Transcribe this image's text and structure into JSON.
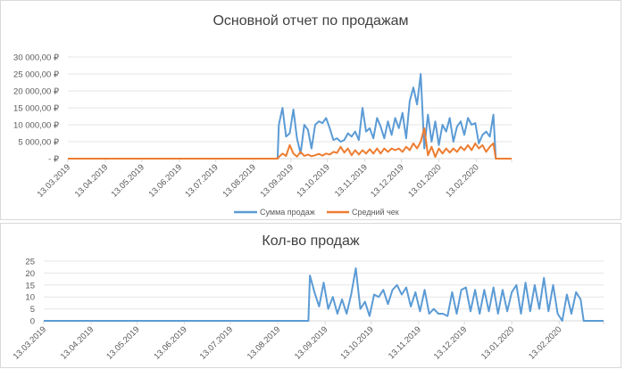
{
  "chart_data": [
    {
      "type": "line",
      "title": "Основной отчет по продажам",
      "xlabel": "",
      "ylabel": "",
      "ylim": [
        0,
        30000
      ],
      "yticks": [
        "-   ₽",
        "5 000,00 ₽",
        "10 000,00 ₽",
        "15 000,00 ₽",
        "20 000,00 ₽",
        "25 000,00 ₽",
        "30 000,00 ₽"
      ],
      "xlim": [
        "2019-03-13",
        "2020-03-13"
      ],
      "xticks": [
        "13.03.2019",
        "13.04.2019",
        "13.05.2019",
        "13.06.2019",
        "13.07.2019",
        "13.08.2019",
        "13.09.2019",
        "13.10.2019",
        "13.11.2019",
        "13.12.2019",
        "13.01.2020",
        "13.02.2020"
      ],
      "grid": true,
      "legend": "bottom",
      "x": [
        "2019-03-13",
        "2019-09-02",
        "2019-09-03",
        "2019-09-06",
        "2019-09-09",
        "2019-09-12",
        "2019-09-15",
        "2019-09-18",
        "2019-09-21",
        "2019-09-24",
        "2019-09-27",
        "2019-09-30",
        "2019-10-03",
        "2019-10-06",
        "2019-10-09",
        "2019-10-12",
        "2019-10-15",
        "2019-10-18",
        "2019-10-21",
        "2019-10-24",
        "2019-10-27",
        "2019-10-30",
        "2019-11-02",
        "2019-11-05",
        "2019-11-08",
        "2019-11-11",
        "2019-11-14",
        "2019-11-17",
        "2019-11-20",
        "2019-11-23",
        "2019-11-26",
        "2019-11-29",
        "2019-12-02",
        "2019-12-05",
        "2019-12-08",
        "2019-12-11",
        "2019-12-14",
        "2019-12-17",
        "2019-12-20",
        "2019-12-23",
        "2019-12-26",
        "2019-12-29",
        "2020-01-01",
        "2020-01-04",
        "2020-01-07",
        "2020-01-10",
        "2020-01-13",
        "2020-01-16",
        "2020-01-19",
        "2020-01-22",
        "2020-01-25",
        "2020-01-28",
        "2020-01-31",
        "2020-02-03",
        "2020-02-06",
        "2020-02-09",
        "2020-02-12",
        "2020-02-15",
        "2020-02-18",
        "2020-02-21",
        "2020-02-24",
        "2020-02-27",
        "2020-02-29",
        "2020-03-13"
      ],
      "series": [
        {
          "name": "Сумма продаж",
          "color": "#5B9BD5",
          "values": [
            0,
            0,
            10000,
            15000,
            6500,
            7500,
            14500,
            6000,
            1500,
            10000,
            8500,
            3000,
            10000,
            11000,
            10500,
            12000,
            9000,
            5500,
            6000,
            5000,
            5500,
            7500,
            6500,
            8000,
            5500,
            15000,
            8000,
            9000,
            6000,
            12000,
            9500,
            6000,
            11000,
            7000,
            12000,
            9000,
            13500,
            6000,
            17000,
            21000,
            16000,
            25000,
            3000,
            13000,
            5000,
            11000,
            4000,
            10000,
            8000,
            12000,
            5000,
            9500,
            11000,
            7000,
            12000,
            10000,
            10500,
            4500,
            7000,
            8000,
            6500,
            13000,
            0,
            0
          ]
        },
        {
          "name": "Средний чек",
          "color": "#ED7D31",
          "values": [
            0,
            0,
            500,
            1500,
            800,
            4000,
            1500,
            600,
            2000,
            800,
            1200,
            700,
            1000,
            1400,
            900,
            1500,
            1200,
            2000,
            1700,
            3500,
            1800,
            3000,
            1000,
            2500,
            1200,
            2500,
            1500,
            2800,
            1500,
            3000,
            1500,
            3000,
            2000,
            3000,
            2500,
            3000,
            2000,
            3500,
            2500,
            4500,
            3000,
            5000,
            9000,
            1000,
            3500,
            500,
            3000,
            1500,
            3000,
            1800,
            3000,
            2000,
            3500,
            2500,
            4000,
            2500,
            4500,
            3000,
            4000,
            2000,
            3500,
            4500,
            0,
            0
          ]
        }
      ]
    },
    {
      "type": "line",
      "title": "Кол-во продаж",
      "xlabel": "",
      "ylabel": "",
      "ylim": [
        0,
        25
      ],
      "yticks": [
        "0",
        "5",
        "10",
        "15",
        "20",
        "25"
      ],
      "xlim": [
        "2019-03-13",
        "2020-03-13"
      ],
      "xticks": [
        "13.03.2019",
        "13.04.2019",
        "13.05.2019",
        "13.06.2019",
        "13.07.2019",
        "13.08.2019",
        "13.09.2019",
        "13.10.2019",
        "13.11.2019",
        "13.12.2019",
        "13.01.2020",
        "13.02.2020"
      ],
      "grid": true,
      "legend": "none",
      "x": [
        "2019-03-13",
        "2019-09-02",
        "2019-09-03",
        "2019-09-06",
        "2019-09-09",
        "2019-09-12",
        "2019-09-15",
        "2019-09-18",
        "2019-09-21",
        "2019-09-24",
        "2019-09-27",
        "2019-09-30",
        "2019-10-03",
        "2019-10-06",
        "2019-10-09",
        "2019-10-12",
        "2019-10-15",
        "2019-10-18",
        "2019-10-21",
        "2019-10-24",
        "2019-10-27",
        "2019-10-30",
        "2019-11-02",
        "2019-11-05",
        "2019-11-08",
        "2019-11-11",
        "2019-11-14",
        "2019-11-17",
        "2019-11-20",
        "2019-11-23",
        "2019-11-26",
        "2019-11-29",
        "2019-12-02",
        "2019-12-05",
        "2019-12-08",
        "2019-12-11",
        "2019-12-14",
        "2019-12-17",
        "2019-12-20",
        "2019-12-23",
        "2019-12-26",
        "2019-12-29",
        "2020-01-01",
        "2020-01-04",
        "2020-01-07",
        "2020-01-10",
        "2020-01-13",
        "2020-01-16",
        "2020-01-19",
        "2020-01-22",
        "2020-01-25",
        "2020-01-28",
        "2020-01-31",
        "2020-02-03",
        "2020-02-06",
        "2020-02-09",
        "2020-02-12",
        "2020-02-15",
        "2020-02-18",
        "2020-02-21",
        "2020-02-24",
        "2020-02-27",
        "2020-02-29",
        "2020-03-13"
      ],
      "series": [
        {
          "color": "#5B9BD5",
          "values": [
            0,
            0,
            19,
            12,
            6,
            16,
            5,
            10,
            3,
            9,
            3,
            11,
            22,
            5,
            8,
            2,
            11,
            10,
            13,
            7,
            13,
            15,
            11,
            14,
            6,
            12,
            4,
            13,
            3,
            5,
            3,
            3,
            2,
            12,
            3,
            13,
            14,
            4,
            13,
            3,
            13,
            4,
            14,
            3,
            13,
            4,
            12,
            15,
            3,
            16,
            4,
            15,
            5,
            18,
            4,
            15,
            3,
            0,
            11,
            3,
            12,
            9,
            0,
            0
          ]
        }
      ]
    }
  ]
}
